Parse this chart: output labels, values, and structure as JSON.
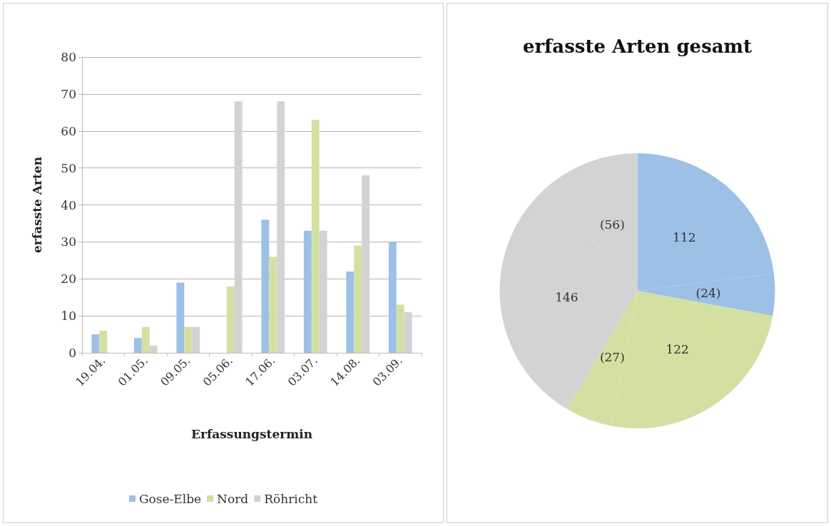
{
  "chart_data": [
    {
      "type": "bar",
      "xlabel": "Erfassungstermin",
      "ylabel": "erfasste Arten",
      "categories": [
        "19.04.",
        "01.05.",
        "09.05.",
        "05.06.",
        "17.06.",
        "03.07.",
        "14.08.",
        "03.09."
      ],
      "series": [
        {
          "name": "Gose-Elbe",
          "color": "#9dc0e6",
          "values": [
            5,
            4,
            19,
            0,
            36,
            33,
            22,
            30
          ]
        },
        {
          "name": "Nord",
          "color": "#d3e0a2",
          "values": [
            6,
            7,
            7,
            18,
            26,
            63,
            29,
            13
          ]
        },
        {
          "name": "Röhricht",
          "color": "#d3d3d3",
          "values": [
            0,
            2,
            7,
            68,
            68,
            33,
            48,
            11
          ]
        }
      ],
      "ylim": [
        0,
        80
      ],
      "yticks": [
        0,
        10,
        20,
        30,
        40,
        50,
        60,
        70,
        80
      ],
      "grid": "y",
      "legend": "bottom"
    },
    {
      "type": "pie",
      "title": "erfasste Arten gesamt",
      "categories": [
        null,
        null,
        null,
        null,
        null,
        null
      ],
      "values": [
        112,
        24,
        122,
        27,
        146,
        56
      ],
      "colors": [
        "#9dc0e6",
        "#9dc0e6",
        "#d3e0a2",
        "#d3e0a2",
        "#d3d3d3",
        "#d3d3d3"
      ],
      "value_labels": [
        "112",
        "(24)",
        "122",
        "(27)",
        "146",
        "(56)"
      ],
      "legend": false
    }
  ]
}
